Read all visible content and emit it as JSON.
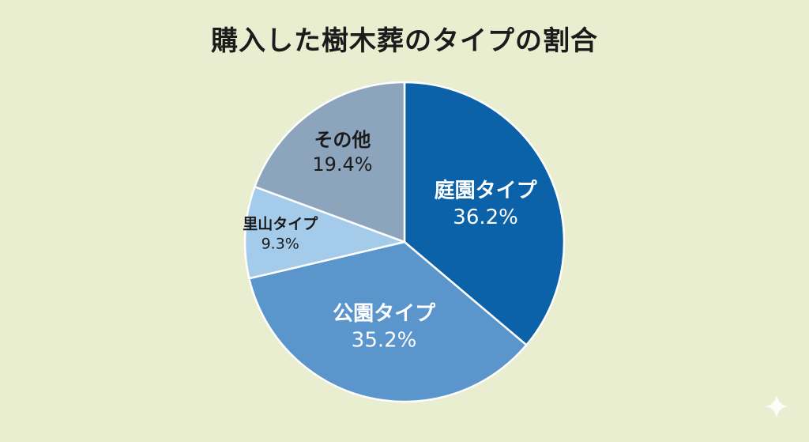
{
  "title": "購入した樹木葬のタイプの割合",
  "chart_data": {
    "type": "pie",
    "title": "購入した樹木葬のタイプの割合",
    "slices": [
      {
        "label": "庭園タイプ",
        "value": 36.2,
        "value_label": "36.2%",
        "color": "#0b62a8",
        "text_color": "#ffffff"
      },
      {
        "label": "公園タイプ",
        "value": 35.2,
        "value_label": "35.2%",
        "color": "#5a95cc",
        "text_color": "#ffffff"
      },
      {
        "label": "里山タイプ",
        "value": 9.3,
        "value_label": "9.3%",
        "color": "#a4cbea",
        "text_color": "#1b1b1b"
      },
      {
        "label": "その他",
        "value": 19.4,
        "value_label": "19.4%",
        "color": "#8da4bd",
        "text_color": "#1b1b1b"
      }
    ],
    "start_angle": "12 o'clock",
    "direction": "clockwise",
    "slice_border_color": "#ffffff"
  },
  "colors": {
    "background": "#e9eed0",
    "title": "#1b1b1b"
  },
  "icons": [
    "sparkle-icon"
  ]
}
